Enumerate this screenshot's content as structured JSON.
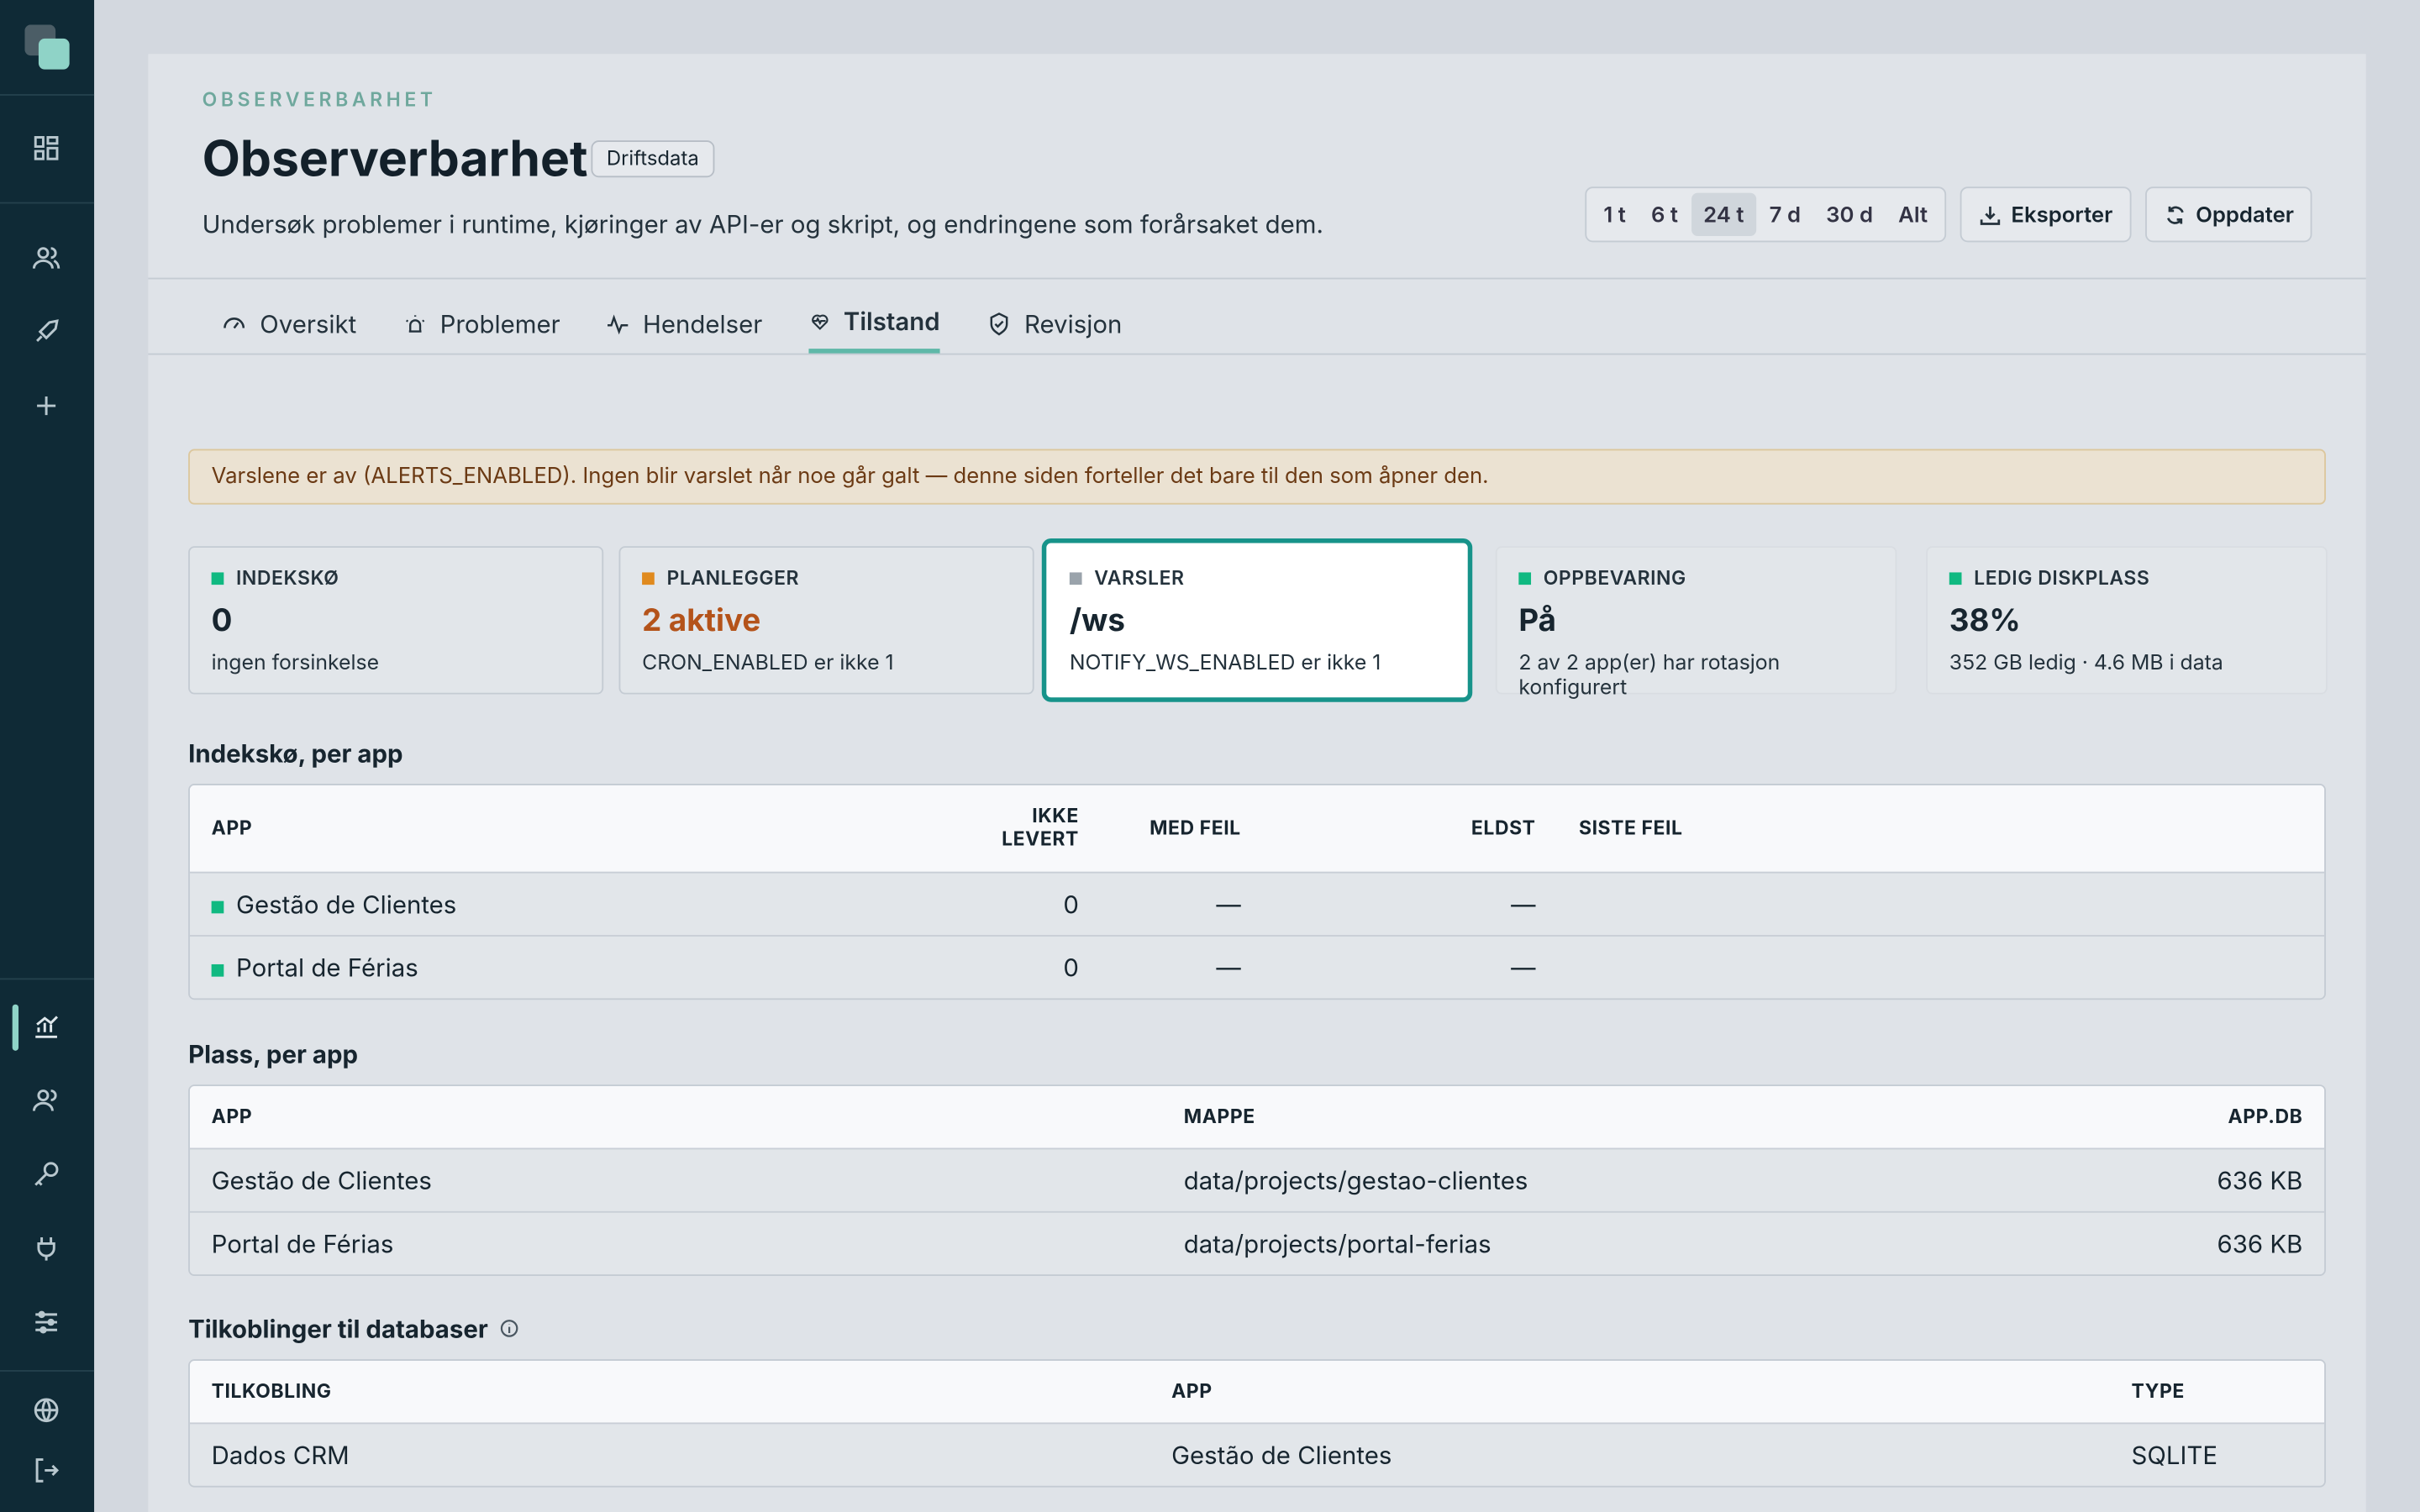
{
  "header": {
    "eyebrow": "OBSERVERBARHET",
    "title": "Observerbarhet",
    "badge": "Driftsdata",
    "description": "Undersøk problemer i runtime, kjøringer av API-er og skript, og endringene som forårsaket dem."
  },
  "time_ranges": [
    "1 t",
    "6 t",
    "24 t",
    "7 d",
    "30 d",
    "Alt"
  ],
  "selected_range": 2,
  "actions": [
    "Eksporter",
    "Oppdater"
  ],
  "tabs": [
    "Oversikt",
    "Problemer",
    "Hendelser",
    "Tilstand",
    "Revisjon"
  ],
  "active_tab": 3,
  "alert": "Varslene er av (ALERTS_ENABLED). Ingen blir varslet når noe går galt — denne siden forteller det bare til den som åpner den.",
  "cards": [
    {
      "label": "INDEKSKØ",
      "value": "0",
      "detail": "ingen forsinkelse",
      "status": "ok"
    },
    {
      "label": "PLANLEGGER",
      "value": "2 aktive",
      "detail": "CRON_ENABLED er ikke 1",
      "status": "warn"
    },
    {
      "label": "VARSLER",
      "value": "/ws",
      "detail": "NOTIFY_WS_ENABLED er ikke 1",
      "status": "off"
    },
    {
      "label": "OPPBEVARING",
      "value": "På",
      "detail": "2 av 2 app(er) har rotasjon konfigurert",
      "status": "ok"
    },
    {
      "label": "LEDIG DISKPLASS",
      "value": "38%",
      "detail": "352 GB ledig · 4.6 MB i data",
      "status": "ok"
    }
  ],
  "focused_card": 2,
  "queue": {
    "title": "Indekskø, per app",
    "columns": [
      "APP",
      "IKKE LEVERT",
      "MED FEIL",
      "ELDST",
      "SISTE FEIL"
    ],
    "rows": [
      [
        "Gestão de Clientes",
        "0",
        "—",
        "—",
        null
      ],
      [
        "Portal de Férias",
        "0",
        "—",
        "—",
        null
      ]
    ],
    "row_status": [
      "ok",
      "ok"
    ]
  },
  "storage": {
    "title": "Plass, per app",
    "columns": [
      "APP",
      "MAPPE",
      "APP.DB"
    ],
    "rows": [
      [
        "Gestão de Clientes",
        "data/projects/gestao-clientes",
        "636 KB"
      ],
      [
        "Portal de Férias",
        "data/projects/portal-ferias",
        "636 KB"
      ]
    ]
  },
  "connections": {
    "title": "Tilkoblinger til databaser",
    "columns": [
      "TILKOBLING",
      "APP",
      "TYPE"
    ],
    "rows": [
      [
        "Dados CRM",
        "Gestão de Clientes",
        "SQLITE"
      ]
    ]
  }
}
